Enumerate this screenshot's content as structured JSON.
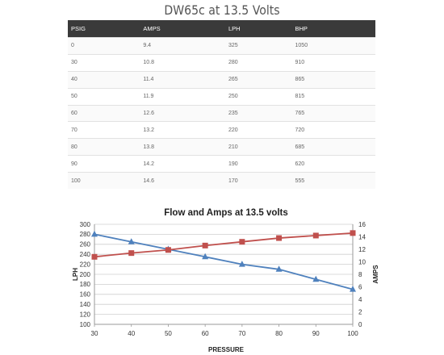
{
  "page_title": "DW65c at 13.5 Volts",
  "table": {
    "headers": [
      "PSIG",
      "AMPS",
      "LPH",
      "BHP"
    ],
    "rows": [
      [
        "0",
        "9.4",
        "325",
        "1050"
      ],
      [
        "30",
        "10.8",
        "280",
        "910"
      ],
      [
        "40",
        "11.4",
        "265",
        "865"
      ],
      [
        "50",
        "11.9",
        "250",
        "815"
      ],
      [
        "60",
        "12.6",
        "235",
        "765"
      ],
      [
        "70",
        "13.2",
        "220",
        "720"
      ],
      [
        "80",
        "13.8",
        "210",
        "685"
      ],
      [
        "90",
        "14.2",
        "190",
        "620"
      ],
      [
        "100",
        "14.6",
        "170",
        "555"
      ]
    ]
  },
  "chart_data": {
    "type": "line",
    "title": "Flow and Amps at 13.5 volts",
    "xlabel": "PRESSURE",
    "ylabel": "LPH",
    "y2label": "AMPS",
    "x": [
      30,
      40,
      50,
      60,
      70,
      80,
      90,
      100
    ],
    "xlim": [
      30,
      100
    ],
    "ylim": [
      100,
      300
    ],
    "y2lim": [
      0,
      16
    ],
    "yticks": [
      100,
      120,
      140,
      160,
      180,
      200,
      220,
      240,
      260,
      280,
      300
    ],
    "y2ticks": [
      0,
      2,
      4,
      6,
      8,
      10,
      12,
      14,
      16
    ],
    "grid": true,
    "series": [
      {
        "values": [
          280,
          265,
          250,
          235,
          220,
          210,
          190,
          170
        ],
        "axis": "left",
        "color": "#4f81bd",
        "marker": "triangle"
      },
      {
        "values": [
          10.8,
          11.4,
          11.9,
          12.6,
          13.2,
          13.8,
          14.2,
          14.6
        ],
        "axis": "right",
        "color": "#c0504d",
        "marker": "square"
      }
    ]
  }
}
